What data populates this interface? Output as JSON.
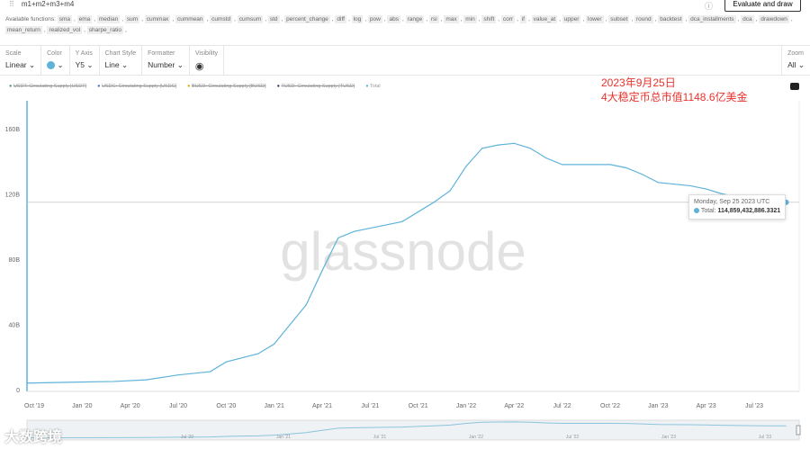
{
  "formula": {
    "value": "m1+m2+m3+m4",
    "evaluate_label": "Evaluate and draw"
  },
  "functions": {
    "label": "Available functions:",
    "items": [
      "sma",
      "ema",
      "median",
      "sum",
      "cummax",
      "cummean",
      "cumstd",
      "cumsum",
      "std",
      "percent_change",
      "diff",
      "log",
      "pow",
      "abs",
      "range",
      "rsi",
      "max",
      "min",
      "shift",
      "corr",
      "if",
      "value_at",
      "upper",
      "lower",
      "subset",
      "round",
      "backtest",
      "dca_installments",
      "dca",
      "drawdown",
      "mean_return",
      "realized_vol",
      "sharpe_ratio"
    ]
  },
  "toolbar": [
    {
      "label": "Scale",
      "value": "Linear"
    },
    {
      "label": "Color",
      "value": "",
      "color": "#5fb3d9"
    },
    {
      "label": "Y Axis",
      "value": "Y5"
    },
    {
      "label": "Chart Style",
      "value": "Line"
    },
    {
      "label": "Formatter",
      "value": "Number"
    },
    {
      "label": "Visibility",
      "value": "eye-icon"
    }
  ],
  "zoom": {
    "label": "Zoom",
    "value": "All"
  },
  "legend": [
    {
      "name": "USDT: Circulating Supply [USDT]",
      "color": "#3a9a6a",
      "hidden": true
    },
    {
      "name": "USDC: Circulating Supply [USDC]",
      "color": "#4a6bc2",
      "hidden": true
    },
    {
      "name": "BUSD: Circulating Supply [BUSD]",
      "color": "#e0a800",
      "hidden": true
    },
    {
      "name": "TUSD: Circulating Supply [TUSD]",
      "color": "#333366",
      "hidden": true
    },
    {
      "name": "Total",
      "color": "#5fb3d9",
      "hidden": false
    }
  ],
  "annotation": {
    "line1": "2023年9月25日",
    "line2": "4大稳定币总市值1148.6亿美金"
  },
  "tooltip": {
    "date": "Monday, Sep 25 2023 UTC",
    "label": "Total:",
    "value": "114,859,432,886.3321"
  },
  "watermark": "glassnode",
  "logo": "大数跨境",
  "chart_data": {
    "type": "line",
    "ylim": [
      0,
      160
    ],
    "yticks": [
      "0",
      "40B",
      "80B",
      "120B",
      "160B"
    ],
    "ytick_values": [
      0,
      40,
      80,
      120,
      160
    ],
    "xticks": [
      "Oct '19",
      "Jan '20",
      "Apr '20",
      "Jul '20",
      "Oct '20",
      "Jan '21",
      "Apr '21",
      "Jul '21",
      "Oct '21",
      "Jan '22",
      "Apr '22",
      "Jul '22",
      "Oct '22",
      "Jan '23",
      "Apr '23",
      "Jul '23"
    ],
    "navigator_ticks": [
      "Jul '20",
      "Jan '21",
      "Jul '21",
      "Jan '22",
      "Jul '22",
      "Jan '23",
      "Jul '23"
    ],
    "series": [
      {
        "name": "Total",
        "color": "#5fb3d9",
        "x": [
          "2019-09",
          "2019-12",
          "2020-03",
          "2020-05",
          "2020-07",
          "2020-09",
          "2020-10",
          "2020-12",
          "2021-01",
          "2021-02",
          "2021-03",
          "2021-04",
          "2021-05",
          "2021-06",
          "2021-07",
          "2021-09",
          "2021-10",
          "2021-11",
          "2021-12",
          "2022-01",
          "2022-02",
          "2022-03",
          "2022-04",
          "2022-05",
          "2022-06",
          "2022-07",
          "2022-09",
          "2022-10",
          "2022-11",
          "2022-12",
          "2023-01",
          "2023-03",
          "2023-04",
          "2023-05",
          "2023-06",
          "2023-07",
          "2023-08",
          "2023-09"
        ],
        "values": [
          4,
          4.5,
          5,
          6,
          9,
          11,
          17,
          22,
          28,
          40,
          52,
          73,
          93,
          97,
          99,
          103,
          109,
          115,
          122,
          137,
          148,
          150,
          151,
          148,
          142,
          138,
          138,
          138,
          136,
          132,
          127,
          125,
          123,
          120,
          118,
          116,
          115,
          114.86
        ]
      }
    ]
  }
}
